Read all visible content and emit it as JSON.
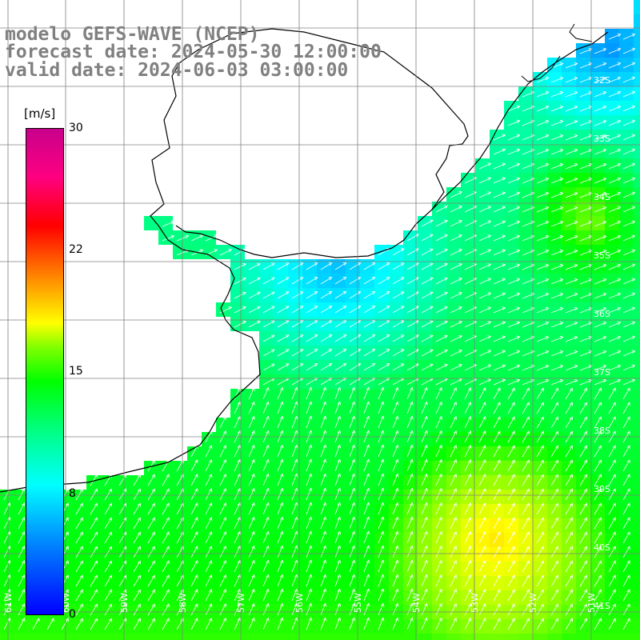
{
  "title": {
    "line1": "modelo GEFS-WAVE (NCEP)",
    "line2": "forecast date: 2024-05-30 12:00:00",
    "line3": "valid date: 2024-06-03 03:00:00"
  },
  "colorbar": {
    "unit": "[m/s]",
    "ticks": [
      "30",
      "22",
      "15",
      "8",
      "0"
    ]
  },
  "grid": {
    "lat_labels": [
      "32S",
      "33S",
      "34S",
      "35S",
      "36S",
      "37S",
      "38S",
      "39S",
      "40S",
      "41S"
    ],
    "lon_labels": [
      "61W",
      "60W",
      "59W",
      "58W",
      "57W",
      "56W",
      "55W",
      "54W",
      "53W",
      "52W",
      "51W"
    ]
  },
  "colors": {
    "land": "#ffffff",
    "coastline": "#000000",
    "gridlines": "#808080",
    "vectors": "#ffffff",
    "title_text": "#808080"
  }
}
